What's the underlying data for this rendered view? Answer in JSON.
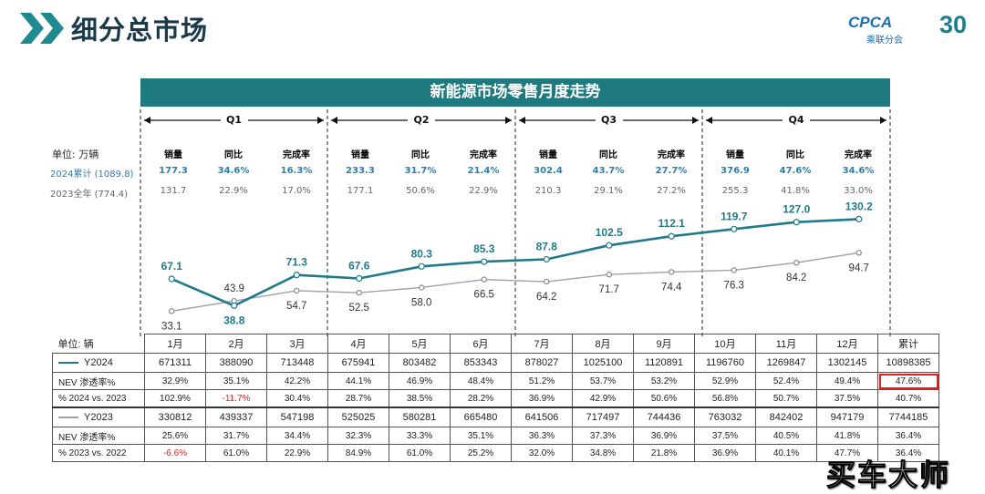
{
  "header": {
    "title": "细分总市场",
    "logo_text": "CPCA",
    "logo_sub": "乘联分会",
    "logo_30": "30"
  },
  "banner": {
    "title": "新能源市场零售月度走势"
  },
  "quarters": [
    "Q1",
    "Q2",
    "Q3",
    "Q4"
  ],
  "summary": {
    "unit_label": "单位: 万辆",
    "row2024_label": "2024累计 (1089.8)",
    "row2023_label": "2023全年 (774.4)",
    "col_labels": [
      "销量",
      "同比",
      "完成率"
    ],
    "q2024": [
      [
        "177.3",
        "34.6%",
        "16.3%"
      ],
      [
        "233.3",
        "31.7%",
        "21.4%"
      ],
      [
        "302.4",
        "43.7%",
        "27.7%"
      ],
      [
        "376.9",
        "47.6%",
        "34.6%"
      ]
    ],
    "q2023": [
      [
        "131.7",
        "22.9%",
        "17.0%"
      ],
      [
        "177.1",
        "50.6%",
        "22.9%"
      ],
      [
        "210.3",
        "29.1%",
        "27.2%"
      ],
      [
        "255.3",
        "41.8%",
        "33.0%"
      ]
    ]
  },
  "chart_data": {
    "type": "line",
    "categories": [
      "1月",
      "2月",
      "3月",
      "4月",
      "5月",
      "6月",
      "7月",
      "8月",
      "9月",
      "10月",
      "11月",
      "12月"
    ],
    "series": [
      {
        "name": "Y2024",
        "values": [
          67.1,
          38.8,
          71.3,
          67.6,
          80.3,
          85.3,
          87.8,
          102.5,
          112.1,
          119.7,
          127.0,
          130.2
        ],
        "color": "#1f7a8c"
      },
      {
        "name": "Y2023",
        "values": [
          33.1,
          43.9,
          54.7,
          52.5,
          58.0,
          66.5,
          64.2,
          71.7,
          74.4,
          76.3,
          84.2,
          94.7
        ],
        "color": "#a0a0a0"
      }
    ],
    "ylim": [
      20,
      145
    ],
    "value_labels": {
      "y2024": [
        "67.1",
        "38.8",
        "71.3",
        "67.6",
        "80.3",
        "85.3",
        "87.8",
        "102.5",
        "112.1",
        "119.7",
        "127.0",
        "130.2"
      ],
      "y2023": [
        "33.1",
        "43.9",
        "54.7",
        "52.5",
        "58.0",
        "66.5",
        "64.2",
        "71.7",
        "74.4",
        "76.3",
        "84.2",
        "94.7"
      ]
    }
  },
  "table": {
    "unit_label": "单位: 辆",
    "months": [
      "1月",
      "2月",
      "3月",
      "4月",
      "5月",
      "6月",
      "7月",
      "8月",
      "9月",
      "10月",
      "11月",
      "12月",
      "累计"
    ],
    "rows": [
      {
        "label": "Y2024",
        "values": [
          "671311",
          "388090",
          "713448",
          "675941",
          "803482",
          "853343",
          "878027",
          "1025100",
          "1120891",
          "1196760",
          "1269847",
          "1302145",
          "10898385"
        ]
      },
      {
        "label": "NEV 渗透率%",
        "values": [
          "32.9%",
          "35.1%",
          "42.2%",
          "44.1%",
          "46.9%",
          "48.4%",
          "51.2%",
          "53.7%",
          "53.2%",
          "52.9%",
          "52.4%",
          "49.4%",
          "47.6%"
        ]
      },
      {
        "label": "% 2024 vs. 2023",
        "values": [
          "102.9%",
          "-11.7%",
          "30.4%",
          "28.7%",
          "38.5%",
          "28.2%",
          "36.9%",
          "42.9%",
          "50.6%",
          "56.8%",
          "50.7%",
          "37.5%",
          "40.7%"
        ]
      },
      {
        "label": "Y2023",
        "values": [
          "330812",
          "439337",
          "547198",
          "525025",
          "580281",
          "665480",
          "641506",
          "717497",
          "744436",
          "763032",
          "842402",
          "947179",
          "7744185"
        ]
      },
      {
        "label": "NEV 渗透率%",
        "values": [
          "25.6%",
          "31.7%",
          "34.4%",
          "32.3%",
          "33.3%",
          "35.1%",
          "36.3%",
          "37.3%",
          "36.9%",
          "37.5%",
          "40.5%",
          "41.8%",
          "36.4%"
        ]
      },
      {
        "label": "% 2023 vs. 2022",
        "values": [
          "-6.6%",
          "61.0%",
          "22.9%",
          "84.9%",
          "61.0%",
          "25.2%",
          "32.0%",
          "34.8%",
          "21.8%",
          "36.9%",
          "40.1%",
          "47.7%",
          "36.4%"
        ]
      }
    ]
  },
  "watermark": "买车大师"
}
